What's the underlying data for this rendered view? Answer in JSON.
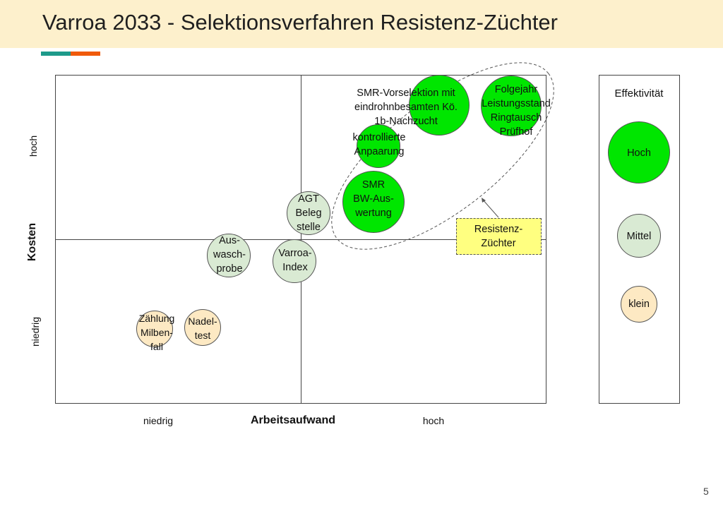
{
  "slide": {
    "title": "Varroa 2033 - Selektionsverfahren Resistenz-Züchter",
    "page_number": "5"
  },
  "axes": {
    "x_label": "Arbeitsaufwand",
    "x_low": "niedrig",
    "x_high": "hoch",
    "y_label": "Kosten",
    "y_low": "niedrig",
    "y_high": "hoch"
  },
  "items": [
    {
      "label": "SMR-Vorselektion mit\neindrohnbesamten Kö.\n1b-Nachzucht",
      "effect": "Hoch"
    },
    {
      "label": "Folgejahr\nLeistungsstand\nRingtausch\nPrüfhof",
      "effect": "Hoch"
    },
    {
      "label": "kontrollierte\nAnpaarung",
      "effect": "Hoch"
    },
    {
      "label": "SMR\nBW-Aus-\nwertung",
      "effect": "Hoch"
    },
    {
      "label": "AGT\nBeleg\nstelle",
      "effect": "Mittel"
    },
    {
      "label": "Aus-\nwasch-\nprobe",
      "effect": "Mittel"
    },
    {
      "label": "Varroa-\nIndex",
      "effect": "Mittel"
    },
    {
      "label": "Zählung\nMilben-\nfall",
      "effect": "klein"
    },
    {
      "label": "Nadel-\ntest",
      "effect": "klein"
    }
  ],
  "group": {
    "label": "Resistenz-\nZüchter"
  },
  "legend": {
    "title": "Effektivität",
    "high": "Hoch",
    "medium": "Mittel",
    "low": "klein"
  },
  "colors": {
    "high": "#00e600",
    "medium": "#d9ead3",
    "low": "#fde9c3",
    "group_box": "#ffff80",
    "title_bar": "#fdf0cc",
    "accent_teal": "#1e9a8a",
    "accent_orange": "#f05a0a"
  }
}
